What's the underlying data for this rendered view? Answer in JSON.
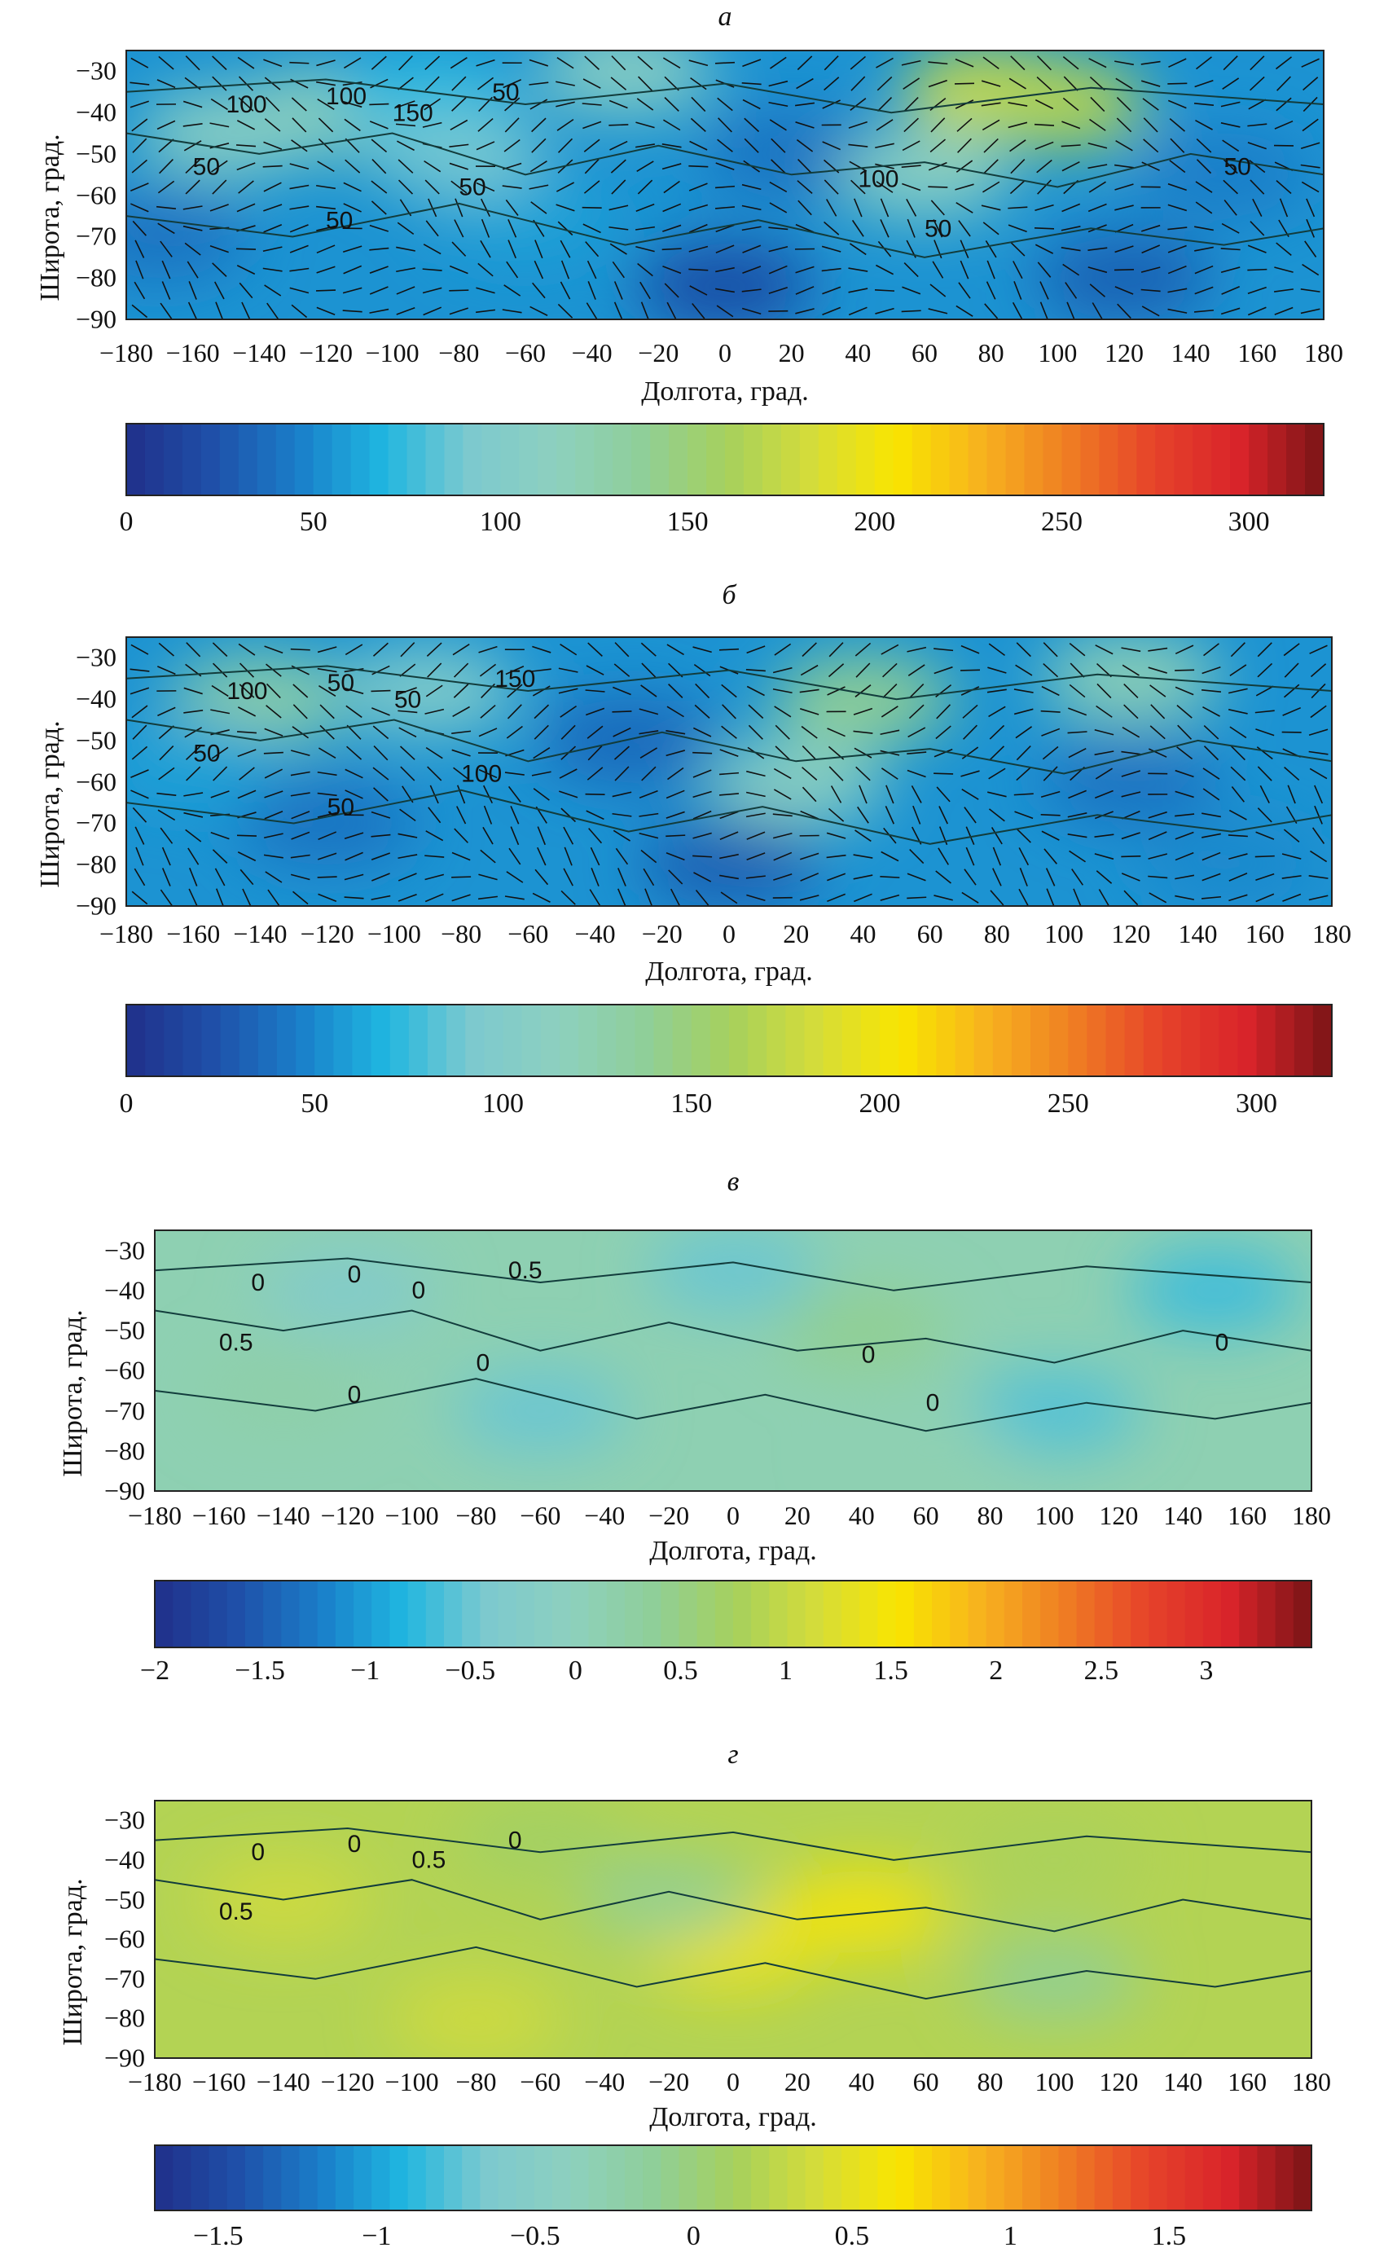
{
  "chart_data": [
    {
      "panel_label": "а",
      "type": "heatmap",
      "xlabel": "Долгота, град.",
      "ylabel": "Широта, град.",
      "xlim": [
        -180,
        180
      ],
      "ylim": [
        -90,
        -25
      ],
      "x_ticks": [
        "−180",
        "−160",
        "−140",
        "−120",
        "−100",
        "−80",
        "−60",
        "−40",
        "−20",
        "0",
        "20",
        "40",
        "60",
        "80",
        "100",
        "120",
        "140",
        "160",
        "180"
      ],
      "y_ticks": [
        "−30",
        "−40",
        "−50",
        "−60",
        "−70",
        "−80",
        "−90"
      ],
      "colorbar": {
        "min": 0,
        "max": 320,
        "ticks": [
          "0",
          "50",
          "100",
          "150",
          "200",
          "250",
          "300"
        ]
      },
      "contour_labels": [
        "100",
        "100",
        "150",
        "50",
        "50",
        "50",
        "50",
        "100",
        "50",
        "50"
      ],
      "wind_vectors": true,
      "fields": [
        {
          "lon": -120,
          "lat": -40,
          "v": 120
        },
        {
          "lon": -150,
          "lat": -45,
          "v": 110
        },
        {
          "lon": -90,
          "lat": -35,
          "v": 70
        },
        {
          "lon": -60,
          "lat": -65,
          "v": 60
        },
        {
          "lon": -30,
          "lat": -30,
          "v": 110
        },
        {
          "lon": 20,
          "lat": -50,
          "v": 40
        },
        {
          "lon": 80,
          "lat": -35,
          "v": 180
        },
        {
          "lon": 100,
          "lat": -38,
          "v": 170
        },
        {
          "lon": 60,
          "lat": -55,
          "v": 110
        },
        {
          "lon": 150,
          "lat": -55,
          "v": 45
        },
        {
          "lon": -170,
          "lat": -70,
          "v": 40
        },
        {
          "lon": 0,
          "lat": -82,
          "v": 20
        },
        {
          "lon": 120,
          "lat": -80,
          "v": 30
        },
        {
          "lon": -80,
          "lat": -50,
          "v": 90
        }
      ]
    },
    {
      "panel_label": "б",
      "type": "heatmap",
      "xlabel": "Долгота, град.",
      "ylabel": "Широта, град.",
      "xlim": [
        -180,
        180
      ],
      "ylim": [
        -90,
        -25
      ],
      "x_ticks": [
        "−180",
        "−160",
        "−140",
        "−120",
        "−100",
        "−80",
        "−60",
        "−40",
        "−20",
        "0",
        "20",
        "40",
        "60",
        "80",
        "100",
        "120",
        "140",
        "160",
        "180"
      ],
      "y_ticks": [
        "−30",
        "−40",
        "−50",
        "−60",
        "−70",
        "−80",
        "−90"
      ],
      "colorbar": {
        "min": 0,
        "max": 320,
        "ticks": [
          "0",
          "50",
          "100",
          "150",
          "200",
          "250",
          "300"
        ]
      },
      "contour_labels": [
        "100",
        "50",
        "50",
        "150",
        "50",
        "50",
        "100"
      ],
      "wind_vectors": true,
      "fields": [
        {
          "lon": -140,
          "lat": -40,
          "v": 130
        },
        {
          "lon": -90,
          "lat": -38,
          "v": 100
        },
        {
          "lon": -30,
          "lat": -50,
          "v": 35
        },
        {
          "lon": 40,
          "lat": -40,
          "v": 140
        },
        {
          "lon": 20,
          "lat": -60,
          "v": 110
        },
        {
          "lon": 120,
          "lat": -35,
          "v": 120
        },
        {
          "lon": 120,
          "lat": -60,
          "v": 40
        },
        {
          "lon": -120,
          "lat": -70,
          "v": 40
        },
        {
          "lon": -160,
          "lat": -55,
          "v": 60
        },
        {
          "lon": 0,
          "lat": -80,
          "v": 30
        },
        {
          "lon": 150,
          "lat": -80,
          "v": 50
        }
      ]
    },
    {
      "panel_label": "в",
      "type": "heatmap",
      "xlabel": "Долгота, град.",
      "ylabel": "Широта, град.",
      "xlim": [
        -180,
        180
      ],
      "ylim": [
        -90,
        -25
      ],
      "x_ticks": [
        "−180",
        "−160",
        "−140",
        "−120",
        "−100",
        "−80",
        "−60",
        "−40",
        "−20",
        "0",
        "20",
        "40",
        "60",
        "80",
        "100",
        "120",
        "140",
        "160",
        "180"
      ],
      "y_ticks": [
        "−30",
        "−40",
        "−50",
        "−60",
        "−70",
        "−80",
        "−90"
      ],
      "colorbar": {
        "min": -2,
        "max": 3.5,
        "ticks": [
          "−2",
          "−1.5",
          "−1",
          "−0.5",
          "0",
          "0.5",
          "1",
          "1.5",
          "2",
          "2.5",
          "3"
        ]
      },
      "contour_labels": [
        "0",
        "0",
        "0",
        "0.5",
        "0.5",
        "0",
        "0",
        "0",
        "0",
        "0"
      ],
      "wind_vectors": false,
      "fields": [
        {
          "lon": -120,
          "lat": -40,
          "v": -0.3
        },
        {
          "lon": 0,
          "lat": -35,
          "v": -0.5
        },
        {
          "lon": 150,
          "lat": -40,
          "v": -0.7
        },
        {
          "lon": -60,
          "lat": -70,
          "v": -0.5
        },
        {
          "lon": 100,
          "lat": -70,
          "v": -0.6
        },
        {
          "lon": 40,
          "lat": -50,
          "v": 0.4
        },
        {
          "lon": -140,
          "lat": -65,
          "v": 0.2
        },
        {
          "lon": 60,
          "lat": -80,
          "v": 0.1
        }
      ]
    },
    {
      "panel_label": "г",
      "type": "heatmap",
      "xlabel": "Долгота, град.",
      "ylabel": "Широта, град.",
      "xlim": [
        -180,
        180
      ],
      "ylim": [
        -90,
        -25
      ],
      "x_ticks": [
        "−180",
        "−160",
        "−140",
        "−120",
        "−100",
        "−80",
        "−60",
        "−40",
        "−20",
        "0",
        "20",
        "40",
        "60",
        "80",
        "100",
        "120",
        "140",
        "160",
        "180"
      ],
      "y_ticks": [
        "−30",
        "−40",
        "−50",
        "−60",
        "−70",
        "−80",
        "−90"
      ],
      "colorbar": {
        "min": -1.7,
        "max": 1.95,
        "ticks": [
          "−1.5",
          "−1",
          "−0.5",
          "0",
          "0.5",
          "1",
          "1.5"
        ]
      },
      "contour_labels": [
        "0",
        "0",
        "0.5",
        "0",
        "0.5"
      ],
      "wind_vectors": false,
      "fields": [
        {
          "lon": -140,
          "lat": -50,
          "v": 0.35
        },
        {
          "lon": -80,
          "lat": -80,
          "v": 0.35
        },
        {
          "lon": 0,
          "lat": -62,
          "v": 0.55
        },
        {
          "lon": 40,
          "lat": -53,
          "v": 0.6
        },
        {
          "lon": -20,
          "lat": -50,
          "v": -0.1
        },
        {
          "lon": 100,
          "lat": -70,
          "v": -0.1
        },
        {
          "lon": 100,
          "lat": -40,
          "v": 0.15
        },
        {
          "lon": -60,
          "lat": -35,
          "v": 0.1
        }
      ]
    }
  ],
  "colors": {
    "colormap": [
      "#202f8a",
      "#1f4fa8",
      "#1a7ec9",
      "#1fb6e0",
      "#7cc9cf",
      "#8dd0bf",
      "#8fcf9a",
      "#a5d05e",
      "#d4dc3a",
      "#f9e500",
      "#f7b21e",
      "#ef7e23",
      "#e6432a",
      "#d9242a",
      "#7a1416"
    ],
    "contour": "#123c3c",
    "vector": "#111111"
  }
}
